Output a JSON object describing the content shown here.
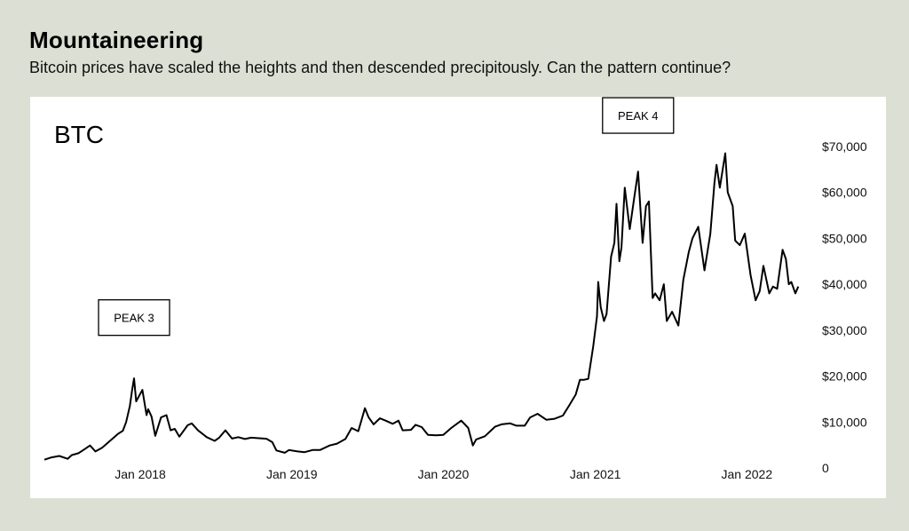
{
  "header": {
    "title": "Mountaineering",
    "subtitle": "Bitcoin prices have scaled the heights and then descended precipitously. Can the pattern continue?"
  },
  "chart_data": {
    "type": "line",
    "series_label": "BTC",
    "yticks": [
      {
        "value": 70000,
        "label": "$70,000"
      },
      {
        "value": 60000,
        "label": "$60,000"
      },
      {
        "value": 50000,
        "label": "$50,000"
      },
      {
        "value": 40000,
        "label": "$40,000"
      },
      {
        "value": 30000,
        "label": "$30,000"
      },
      {
        "value": 20000,
        "label": "$20,000"
      },
      {
        "value": 10000,
        "label": "$10,000"
      },
      {
        "value": 0,
        "label": "0"
      }
    ],
    "xticks": [
      {
        "value": "2018-01-01",
        "label": "Jan 2018"
      },
      {
        "value": "2019-01-01",
        "label": "Jan 2019"
      },
      {
        "value": "2020-01-01",
        "label": "Jan 2020"
      },
      {
        "value": "2021-01-01",
        "label": "Jan 2021"
      },
      {
        "value": "2022-01-01",
        "label": "Jan 2022"
      }
    ],
    "xlim": [
      "2017-05-15",
      "2022-05-15"
    ],
    "ylim": [
      0,
      75000
    ],
    "annotations": [
      {
        "label": "PEAK 3",
        "x": "2017-12-17",
        "y": 25000
      },
      {
        "label": "PEAK 4",
        "x": "2021-04-14",
        "y": 69000
      }
    ],
    "series": [
      {
        "x": [
          "2017-05-15",
          "2017-06-01",
          "2017-06-20",
          "2017-07-10",
          "2017-07-20",
          "2017-08-05",
          "2017-08-20",
          "2017-09-02",
          "2017-09-15",
          "2017-10-01",
          "2017-10-20",
          "2017-11-08",
          "2017-11-20",
          "2017-11-28",
          "2017-12-07",
          "2017-12-12",
          "2017-12-17",
          "2017-12-22",
          "2017-12-28",
          "2018-01-06",
          "2018-01-16",
          "2018-01-20",
          "2018-01-28",
          "2018-02-06",
          "2018-02-20",
          "2018-03-05",
          "2018-03-15",
          "2018-03-25",
          "2018-04-05",
          "2018-04-25",
          "2018-05-05",
          "2018-05-20",
          "2018-06-10",
          "2018-06-29",
          "2018-07-10",
          "2018-07-25",
          "2018-08-10",
          "2018-08-25",
          "2018-09-10",
          "2018-09-25",
          "2018-10-10",
          "2018-11-01",
          "2018-11-15",
          "2018-11-25",
          "2018-12-15",
          "2018-12-25",
          "2019-01-15",
          "2019-02-01",
          "2019-02-20",
          "2019-03-10",
          "2019-04-02",
          "2019-04-20",
          "2019-05-10",
          "2019-05-25",
          "2019-06-10",
          "2019-06-26",
          "2019-07-05",
          "2019-07-17",
          "2019-08-01",
          "2019-08-15",
          "2019-09-01",
          "2019-09-15",
          "2019-09-25",
          "2019-10-15",
          "2019-10-26",
          "2019-11-10",
          "2019-11-25",
          "2019-12-15",
          "2020-01-01",
          "2020-01-20",
          "2020-02-13",
          "2020-03-01",
          "2020-03-12",
          "2020-03-20",
          "2020-04-10",
          "2020-05-05",
          "2020-05-20",
          "2020-06-10",
          "2020-06-25",
          "2020-07-15",
          "2020-07-28",
          "2020-08-15",
          "2020-09-05",
          "2020-09-25",
          "2020-10-15",
          "2020-10-30",
          "2020-11-15",
          "2020-11-25",
          "2020-12-05",
          "2020-12-15",
          "2020-12-27",
          "2021-01-05",
          "2021-01-08",
          "2021-01-14",
          "2021-01-22",
          "2021-01-28",
          "2021-02-08",
          "2021-02-16",
          "2021-02-21",
          "2021-02-28",
          "2021-03-05",
          "2021-03-13",
          "2021-03-25",
          "2021-04-05",
          "2021-04-14",
          "2021-04-25",
          "2021-05-03",
          "2021-05-10",
          "2021-05-19",
          "2021-05-25",
          "2021-06-05",
          "2021-06-15",
          "2021-06-22",
          "2021-07-05",
          "2021-07-20",
          "2021-08-01",
          "2021-08-14",
          "2021-08-23",
          "2021-09-06",
          "2021-09-21",
          "2021-10-05",
          "2021-10-15",
          "2021-10-20",
          "2021-10-28",
          "2021-11-10",
          "2021-11-16",
          "2021-11-28",
          "2021-12-04",
          "2021-12-15",
          "2021-12-27",
          "2022-01-10",
          "2022-01-22",
          "2022-02-01",
          "2022-02-10",
          "2022-02-24",
          "2022-03-05",
          "2022-03-15",
          "2022-03-28",
          "2022-04-05",
          "2022-04-12",
          "2022-04-18",
          "2022-04-28",
          "2022-05-05"
        ],
        "y": [
          1800,
          2300,
          2600,
          2000,
          2800,
          3200,
          4100,
          4900,
          3600,
          4400,
          5900,
          7400,
          8100,
          10000,
          13500,
          16800,
          19500,
          14500,
          15500,
          17000,
          11500,
          12800,
          11200,
          7000,
          11000,
          11500,
          8200,
          8500,
          6800,
          9300,
          9700,
          8200,
          6700,
          5900,
          6600,
          8200,
          6400,
          6700,
          6300,
          6600,
          6500,
          6350,
          5600,
          3800,
          3300,
          3900,
          3600,
          3450,
          3900,
          3900,
          4900,
          5300,
          6300,
          8700,
          8000,
          13000,
          11000,
          9500,
          10800,
          10300,
          9600,
          10300,
          8200,
          8300,
          9400,
          8900,
          7200,
          7100,
          7200,
          8700,
          10300,
          8700,
          4900,
          6200,
          6900,
          9000,
          9500,
          9700,
          9200,
          9200,
          11000,
          11800,
          10500,
          10700,
          11400,
          13600,
          16000,
          19200,
          19200,
          19400,
          26500,
          33000,
          40500,
          35000,
          32000,
          33500,
          46000,
          49000,
          57500,
          45000,
          48000,
          61000,
          52000,
          59000,
          64500,
          49000,
          57000,
          58000,
          37000,
          38000,
          36500,
          40000,
          32000,
          34000,
          31000,
          41000,
          47000,
          50000,
          52500,
          43000,
          51000,
          62000,
          66000,
          61000,
          68500,
          60000,
          57000,
          49500,
          48500,
          51000,
          42000,
          36500,
          38500,
          44000,
          38000,
          39500,
          39000,
          47500,
          45500,
          40000,
          40500,
          38000,
          39500
        ]
      }
    ]
  }
}
